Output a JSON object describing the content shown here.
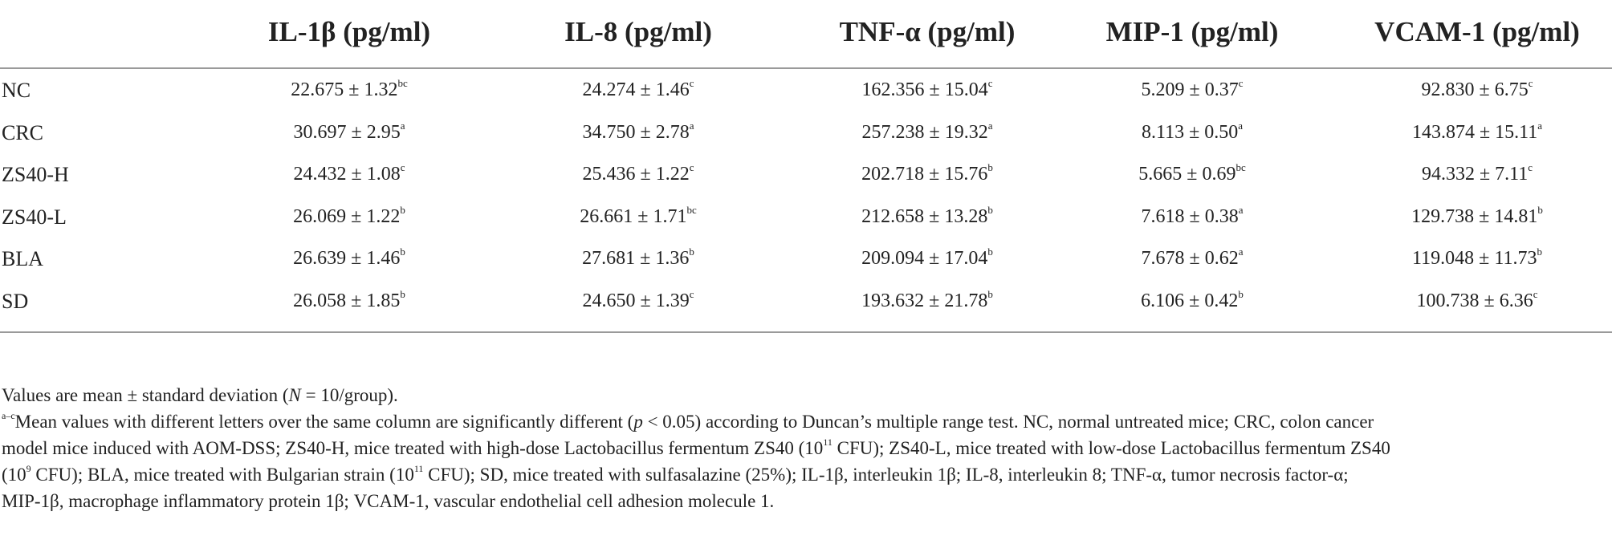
{
  "table": {
    "columns": [
      "IL-1β (pg/ml)",
      "IL-8 (pg/ml)",
      "TNF-α (pg/ml)",
      "MIP-1 (pg/ml)",
      "VCAM-1 (pg/ml)"
    ],
    "rows": [
      {
        "group": "NC",
        "cells": [
          {
            "value": "22.675 ± 1.32",
            "sup": "bc"
          },
          {
            "value": "24.274 ± 1.46",
            "sup": "c"
          },
          {
            "value": "162.356 ± 15.04",
            "sup": "c"
          },
          {
            "value": "5.209 ± 0.37",
            "sup": "c"
          },
          {
            "value": "92.830 ± 6.75",
            "sup": "c"
          }
        ]
      },
      {
        "group": "CRC",
        "cells": [
          {
            "value": "30.697 ± 2.95",
            "sup": "a"
          },
          {
            "value": "34.750 ± 2.78",
            "sup": "a"
          },
          {
            "value": "257.238 ± 19.32",
            "sup": "a"
          },
          {
            "value": "8.113 ± 0.50",
            "sup": "a"
          },
          {
            "value": "143.874 ± 15.11",
            "sup": "a"
          }
        ]
      },
      {
        "group": "ZS40-H",
        "cells": [
          {
            "value": "24.432 ± 1.08",
            "sup": "c"
          },
          {
            "value": "25.436 ± 1.22",
            "sup": "c"
          },
          {
            "value": "202.718 ± 15.76",
            "sup": "b"
          },
          {
            "value": "5.665 ± 0.69",
            "sup": "bc"
          },
          {
            "value": "94.332 ± 7.11",
            "sup": "c"
          }
        ]
      },
      {
        "group": "ZS40-L",
        "cells": [
          {
            "value": "26.069 ± 1.22",
            "sup": "b"
          },
          {
            "value": "26.661 ± 1.71",
            "sup": "bc"
          },
          {
            "value": "212.658 ± 13.28",
            "sup": "b"
          },
          {
            "value": "7.618 ± 0.38",
            "sup": "a"
          },
          {
            "value": "129.738 ± 14.81",
            "sup": "b"
          }
        ]
      },
      {
        "group": "BLA",
        "cells": [
          {
            "value": "26.639 ± 1.46",
            "sup": "b"
          },
          {
            "value": "27.681 ± 1.36",
            "sup": "b"
          },
          {
            "value": "209.094 ± 17.04",
            "sup": "b"
          },
          {
            "value": "7.678 ± 0.62",
            "sup": "a"
          },
          {
            "value": "119.048 ± 11.73",
            "sup": "b"
          }
        ]
      },
      {
        "group": "SD",
        "cells": [
          {
            "value": "26.058 ± 1.85",
            "sup": "b"
          },
          {
            "value": "24.650 ± 1.39",
            "sup": "c"
          },
          {
            "value": "193.632 ± 21.78",
            "sup": "b"
          },
          {
            "value": "6.106 ± 0.42",
            "sup": "b"
          },
          {
            "value": "100.738 ± 6.36",
            "sup": "c"
          }
        ]
      }
    ]
  },
  "notes": {
    "line1_pre": "Values are mean ± standard deviation (",
    "line1_n": "N",
    "line1_post": " = 10/group).",
    "footnote_marker": "a–c",
    "line2_pre": "Mean values with different letters over the same column are significantly different (",
    "line2_p": "p",
    "line2_mid": " < 0.05) according to Duncan’s multiple range test. NC, normal untreated mice; CRC, colon cancer",
    "line3_pre": "model mice induced with AOM-DSS; ZS40-H, mice treated with high-dose Lactobacillus fermentum ZS40 (10",
    "line3_exp": "11",
    "line3_post": " CFU); ZS40-L, mice treated with low-dose Lactobacillus fermentum ZS40",
    "line4_pre": "(10",
    "line4_exp1": "9",
    "line4_mid": " CFU); BLA, mice treated with Bulgarian strain (10",
    "line4_exp2": "11",
    "line4_post": " CFU); SD, mice treated with sulfasalazine (25%); IL-1β, interleukin 1β; IL-8, interleukin 8; TNF-α, tumor necrosis factor-α;",
    "line5": "MIP-1β, macrophage inflammatory protein 1β; VCAM-1, vascular endothelial cell adhesion molecule 1."
  }
}
